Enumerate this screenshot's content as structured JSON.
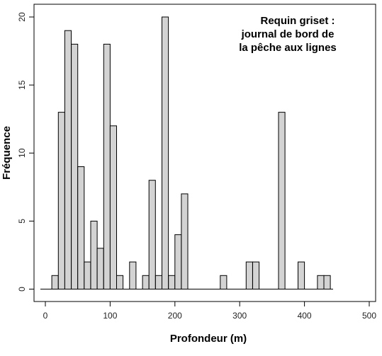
{
  "chart_data": {
    "type": "bar",
    "title_lines": [
      "Requin griset :",
      "journal de bord de",
      "la pêche aux lignes"
    ],
    "xlabel": "Profondeur (m)",
    "ylabel": "Fréquence",
    "xlim": [
      -10,
      505
    ],
    "ylim": [
      0,
      21.5
    ],
    "xticks": [
      0,
      100,
      200,
      300,
      400,
      500
    ],
    "yticks": [
      0,
      5,
      10,
      15,
      20
    ],
    "bin_width": 10,
    "bins": [
      {
        "x0": 10,
        "value": 1
      },
      {
        "x0": 20,
        "value": 13
      },
      {
        "x0": 30,
        "value": 19
      },
      {
        "x0": 40,
        "value": 18
      },
      {
        "x0": 50,
        "value": 9
      },
      {
        "x0": 60,
        "value": 2
      },
      {
        "x0": 70,
        "value": 5
      },
      {
        "x0": 80,
        "value": 3
      },
      {
        "x0": 90,
        "value": 18
      },
      {
        "x0": 100,
        "value": 12
      },
      {
        "x0": 110,
        "value": 1
      },
      {
        "x0": 130,
        "value": 2
      },
      {
        "x0": 150,
        "value": 1
      },
      {
        "x0": 160,
        "value": 8
      },
      {
        "x0": 170,
        "value": 1
      },
      {
        "x0": 180,
        "value": 20
      },
      {
        "x0": 190,
        "value": 1
      },
      {
        "x0": 200,
        "value": 4
      },
      {
        "x0": 210,
        "value": 7
      },
      {
        "x0": 270,
        "value": 1
      },
      {
        "x0": 310,
        "value": 2
      },
      {
        "x0": 320,
        "value": 2
      },
      {
        "x0": 360,
        "value": 13
      },
      {
        "x0": 390,
        "value": 2
      },
      {
        "x0": 420,
        "value": 1
      },
      {
        "x0": 430,
        "value": 1
      }
    ]
  }
}
